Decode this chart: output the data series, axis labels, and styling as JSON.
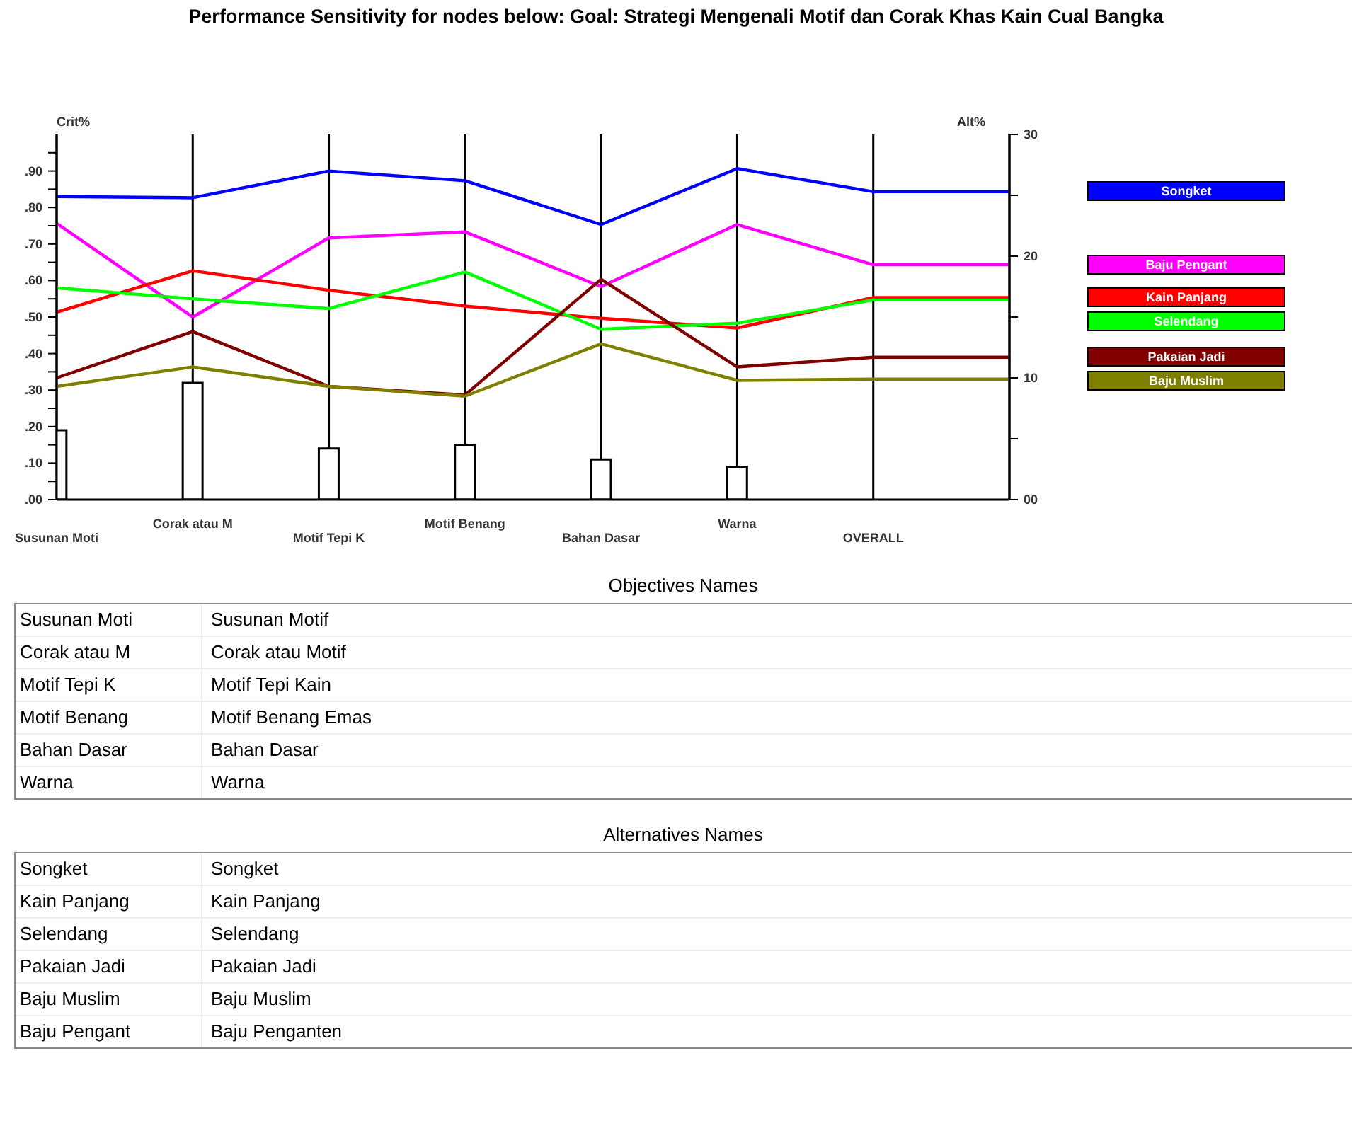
{
  "chart_data": [
    {
      "type": "line",
      "title": "Performance Sensitivity for nodes below: Goal: Strategi Mengenali Motif dan Corak Khas Kain Cual Bangka",
      "ylabel": "Crit%",
      "y2label": "Alt%",
      "categories": [
        "Susunan Moti",
        "Corak atau M",
        "Motif Tepi K",
        "Motif Benang",
        "Bahan Dasar",
        "Warna",
        "OVERALL",
        null
      ],
      "ylim": [
        0,
        1
      ],
      "yticks": [
        {
          "value": 0,
          "label": ".00"
        },
        {
          "value": 0.05,
          "label": null
        },
        {
          "value": 0.1,
          "label": ".10"
        },
        {
          "value": 0.15,
          "label": null
        },
        {
          "value": 0.2,
          "label": ".20"
        },
        {
          "value": 0.25,
          "label": null
        },
        {
          "value": 0.3,
          "label": ".30"
        },
        {
          "value": 0.35,
          "label": null
        },
        {
          "value": 0.4,
          "label": ".40"
        },
        {
          "value": 0.45,
          "label": null
        },
        {
          "value": 0.5,
          "label": ".50"
        },
        {
          "value": 0.55,
          "label": null
        },
        {
          "value": 0.6,
          "label": ".60"
        },
        {
          "value": 0.65,
          "label": null
        },
        {
          "value": 0.7,
          "label": ".70"
        },
        {
          "value": 0.75,
          "label": null
        },
        {
          "value": 0.8,
          "label": ".80"
        },
        {
          "value": 0.85,
          "label": null
        },
        {
          "value": 0.9,
          "label": ".90"
        },
        {
          "value": 0.95,
          "label": null
        }
      ],
      "y2lim": [
        0,
        30
      ],
      "y2ticks": [
        {
          "value": 0,
          "label": "00"
        },
        {
          "value": 5,
          "label": null
        },
        10,
        {
          "value": 15,
          "label": null
        },
        20,
        {
          "value": 25,
          "label": null
        },
        30
      ],
      "grid": "x",
      "legend": "right",
      "series": [
        {
          "type": "bar",
          "color": "#ffffff",
          "values": [
            0.19,
            0.32,
            0.14,
            0.15,
            0.11,
            0.09,
            null,
            null
          ]
        },
        {
          "name": "Songket",
          "color": "#0000ff",
          "axis": "y2",
          "values": [
            24.9,
            24.8,
            27.0,
            26.2,
            22.6,
            27.2,
            25.3,
            25.3
          ]
        },
        {
          "name": "Baju Pengant",
          "color": "#ff00ff",
          "axis": "y2",
          "values": [
            22.7,
            15.0,
            21.5,
            22.0,
            17.5,
            22.6,
            19.3,
            19.3
          ]
        },
        {
          "name": "Kain Panjang",
          "color": "#ff0000",
          "axis": "y2",
          "values": [
            15.4,
            18.8,
            17.2,
            15.9,
            14.9,
            14.1,
            16.6,
            16.6
          ]
        },
        {
          "name": "Selendang",
          "color": "#00ff00",
          "axis": "y2",
          "values": [
            17.4,
            16.5,
            15.7,
            18.7,
            14.0,
            14.5,
            16.4,
            16.4
          ]
        },
        {
          "name": "Pakaian Jadi",
          "color": "#800000",
          "axis": "y2",
          "values": [
            10.0,
            13.8,
            9.3,
            8.6,
            18.1,
            10.9,
            11.7,
            11.7
          ]
        },
        {
          "name": "Baju Muslim",
          "color": "#808000",
          "axis": "y2",
          "values": [
            9.3,
            10.9,
            9.3,
            8.5,
            12.8,
            9.8,
            9.9,
            9.9
          ]
        }
      ]
    },
    {
      "type": "other",
      "title": "Objectives Names",
      "categories": [
        "Susunan Moti",
        "Corak atau M",
        "Motif Tepi K",
        "Motif Benang",
        "Bahan Dasar",
        "Warna"
      ],
      "annotations": [
        "Susunan Motif",
        "Corak atau Motif",
        "Motif Tepi Kain",
        "Motif Benang Emas",
        "Bahan Dasar",
        "Warna"
      ]
    },
    {
      "type": "other",
      "title": "Alternatives Names",
      "categories": [
        "Songket",
        "Kain Panjang",
        "Selendang",
        "Pakaian Jadi",
        "Baju Muslim",
        "Baju Pengant"
      ],
      "annotations": [
        "Songket",
        "Kain Panjang",
        "Selendang",
        "Pakaian Jadi",
        "Baju Muslim",
        "Baju Penganten"
      ]
    }
  ]
}
